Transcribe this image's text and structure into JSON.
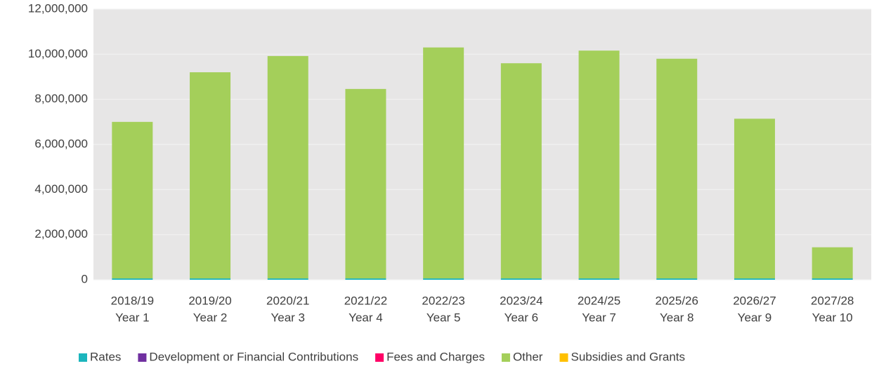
{
  "chart_data": {
    "type": "stacked_bar",
    "categories": [
      [
        "2018/19",
        "Year 1"
      ],
      [
        "2019/20",
        "Year 2"
      ],
      [
        "2020/21",
        "Year 3"
      ],
      [
        "2021/22",
        "Year 4"
      ],
      [
        "2022/23",
        "Year 5"
      ],
      [
        "2023/24",
        "Year 6"
      ],
      [
        "2024/25",
        "Year 7"
      ],
      [
        "2025/26",
        "Year 8"
      ],
      [
        "2026/27",
        "Year 9"
      ],
      [
        "2027/28",
        "Year 10"
      ]
    ],
    "series": [
      {
        "name": "Rates",
        "color": "#1cb5bd",
        "values": [
          60000,
          60000,
          60000,
          60000,
          60000,
          60000,
          60000,
          60000,
          60000,
          60000
        ]
      },
      {
        "name": "Development or Financial Contributions",
        "color": "#7030a0",
        "values": [
          0,
          0,
          0,
          0,
          0,
          0,
          0,
          0,
          0,
          0
        ]
      },
      {
        "name": "Fees and Charges",
        "color": "#ff0066",
        "values": [
          0,
          0,
          0,
          0,
          0,
          0,
          0,
          0,
          0,
          0
        ]
      },
      {
        "name": "Other",
        "color": "#a4cf5a",
        "values": [
          6940000,
          9140000,
          9860000,
          8400000,
          10240000,
          9540000,
          10100000,
          9740000,
          7080000,
          1380000
        ]
      },
      {
        "name": "Subsidies and Grants",
        "color": "#ffc000",
        "values": [
          0,
          0,
          0,
          0,
          0,
          0,
          0,
          0,
          0,
          0
        ]
      }
    ],
    "ylim": [
      0,
      12000000
    ],
    "yticks": [
      0,
      {
        "value": 2000000,
        "label": "2,000,000"
      },
      {
        "value": 4000000,
        "label": "4,000,000"
      },
      {
        "value": 6000000,
        "label": "6,000,000"
      },
      {
        "value": 8000000,
        "label": "8,000,000"
      },
      {
        "value": 10000000,
        "label": "10,000,000"
      },
      {
        "value": 12000000,
        "label": "12,000,000"
      }
    ],
    "grid": true,
    "legend": "bottom"
  }
}
